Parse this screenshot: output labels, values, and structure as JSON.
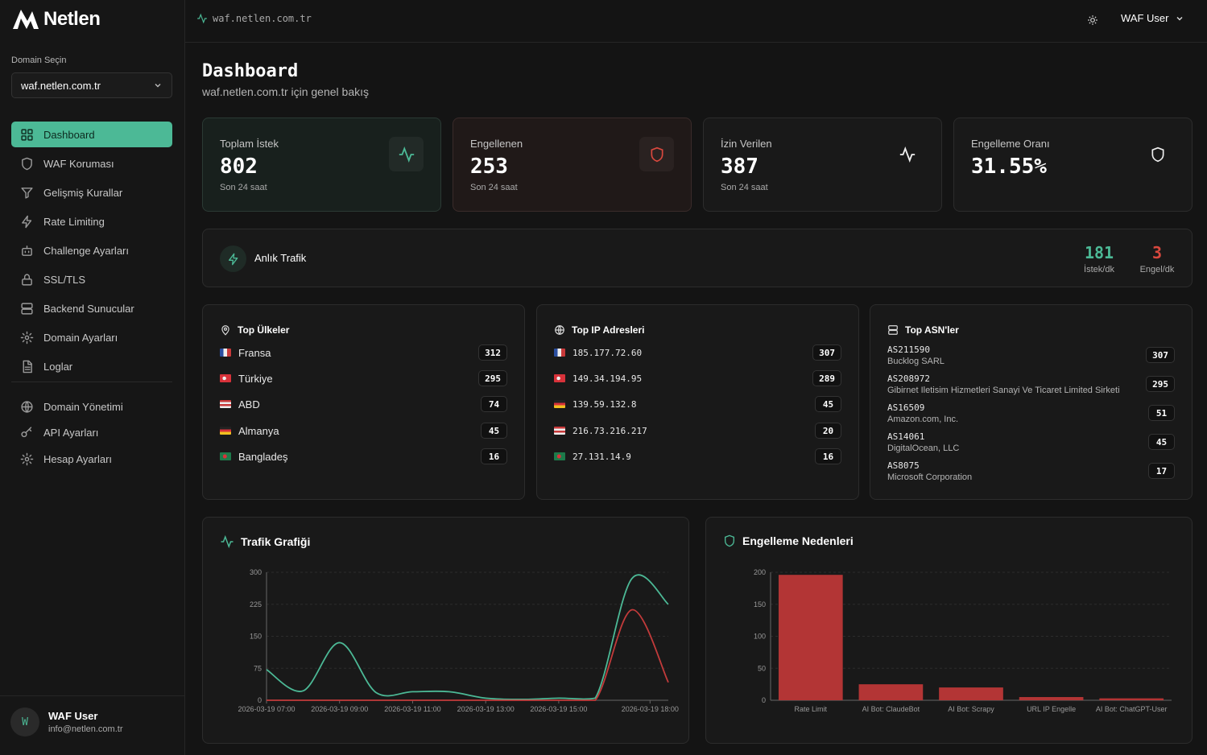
{
  "app": {
    "brand": "Netlen"
  },
  "sidebar": {
    "domain_label": "Domain Seçin",
    "domain_selected": "waf.netlen.com.tr",
    "items": [
      {
        "label": "Dashboard",
        "icon": "grid-icon"
      },
      {
        "label": "WAF Koruması",
        "icon": "shield-icon"
      },
      {
        "label": "Gelişmiş Kurallar",
        "icon": "filter-icon"
      },
      {
        "label": "Rate Limiting",
        "icon": "bolt-icon"
      },
      {
        "label": "Challenge Ayarları",
        "icon": "bot-icon"
      },
      {
        "label": "SSL/TLS",
        "icon": "lock-icon"
      },
      {
        "label": "Backend Sunucular",
        "icon": "server-icon"
      },
      {
        "label": "Domain Ayarları",
        "icon": "gear-icon"
      },
      {
        "label": "Loglar",
        "icon": "file-icon"
      }
    ],
    "items2": [
      {
        "label": "Domain Yönetimi",
        "icon": "globe-icon"
      },
      {
        "label": "API Ayarları",
        "icon": "key-icon"
      },
      {
        "label": "Hesap Ayarları",
        "icon": "gear-icon"
      }
    ],
    "user": {
      "initial": "W",
      "name": "WAF User",
      "email": "info@netlen.com.tr"
    }
  },
  "topbar": {
    "domain": "waf.netlen.com.tr",
    "user": "WAF User"
  },
  "page": {
    "title": "Dashboard",
    "subtitle": "waf.netlen.com.tr için genel bakış"
  },
  "stats": [
    {
      "label": "Toplam İstek",
      "value": "802",
      "sub": "Son 24 saat"
    },
    {
      "label": "Engellenen",
      "value": "253",
      "sub": "Son 24 saat"
    },
    {
      "label": "İzin Verilen",
      "value": "387",
      "sub": "Son 24 saat"
    },
    {
      "label": "Engelleme Oranı",
      "value": "31.55%"
    }
  ],
  "live": {
    "title": "Anlık Trafik",
    "requests": "181",
    "requests_label": "İstek/dk",
    "blocks": "3",
    "blocks_label": "Engel/dk"
  },
  "top_countries": {
    "title": "Top Ülkeler",
    "rows": [
      {
        "name": "Fransa",
        "count": "312"
      },
      {
        "name": "Türkiye",
        "count": "295"
      },
      {
        "name": "ABD",
        "count": "74"
      },
      {
        "name": "Almanya",
        "count": "45"
      },
      {
        "name": "Bangladeş",
        "count": "16"
      }
    ]
  },
  "top_ips": {
    "title": "Top IP Adresleri",
    "rows": [
      {
        "ip": "185.177.72.60",
        "count": "307"
      },
      {
        "ip": "149.34.194.95",
        "count": "289"
      },
      {
        "ip": "139.59.132.8",
        "count": "45"
      },
      {
        "ip": "216.73.216.217",
        "count": "20"
      },
      {
        "ip": "27.131.14.9",
        "count": "16"
      }
    ]
  },
  "top_asns": {
    "title": "Top ASN'ler",
    "rows": [
      {
        "asn": "AS211590",
        "name": "Bucklog SARL",
        "count": "307"
      },
      {
        "asn": "AS208972",
        "name": "Gibirnet Iletisim Hizmetleri Sanayi Ve Ticaret Limited Sirketi",
        "count": "295"
      },
      {
        "asn": "AS16509",
        "name": "Amazon.com, Inc.",
        "count": "51"
      },
      {
        "asn": "AS14061",
        "name": "DigitalOcean, LLC",
        "count": "45"
      },
      {
        "asn": "AS8075",
        "name": "Microsoft Corporation",
        "count": "17"
      }
    ]
  },
  "colors": {
    "accent": "#4cb996",
    "danger": "#c23b3b",
    "bar": "#b33535"
  },
  "chart_data": [
    {
      "type": "line",
      "title": "Trafik Grafiği",
      "x_ticks": [
        "2026-03-19 07:00",
        "2026-03-19 09:00",
        "2026-03-19 11:00",
        "2026-03-19 13:00",
        "2026-03-19 15:00",
        "2026-03-19 18:00"
      ],
      "y_ticks": [
        0,
        75,
        150,
        225,
        300
      ],
      "ylim": [
        0,
        300
      ],
      "series": [
        {
          "color": "#4cb996",
          "points": [
            [
              0,
              72
            ],
            [
              1,
              22
            ],
            [
              2,
              135
            ],
            [
              3,
              18
            ],
            [
              4,
              20
            ],
            [
              5,
              20
            ],
            [
              6,
              5
            ],
            [
              7,
              2
            ],
            [
              8,
              5
            ],
            [
              9,
              5
            ],
            [
              10,
              285
            ],
            [
              11,
              225
            ]
          ]
        },
        {
          "color": "#c23b3b",
          "points": [
            [
              0,
              0
            ],
            [
              1,
              0
            ],
            [
              2,
              0
            ],
            [
              3,
              0
            ],
            [
              4,
              0
            ],
            [
              5,
              0
            ],
            [
              6,
              0
            ],
            [
              7,
              0
            ],
            [
              8,
              0
            ],
            [
              9,
              0
            ],
            [
              10,
              212
            ],
            [
              11,
              42
            ]
          ]
        }
      ],
      "grid": true
    },
    {
      "type": "bar",
      "title": "Engelleme Nedenleri",
      "categories": [
        "Rate Limit",
        "AI Bot: ClaudeBot",
        "AI Bot: Scrapy",
        "URL IP Engelle",
        "AI Bot: ChatGPT-User"
      ],
      "values": [
        196,
        25,
        20,
        5,
        3
      ],
      "y_ticks": [
        0,
        50,
        100,
        150,
        200
      ],
      "ylim": [
        0,
        200
      ],
      "grid": true
    }
  ]
}
